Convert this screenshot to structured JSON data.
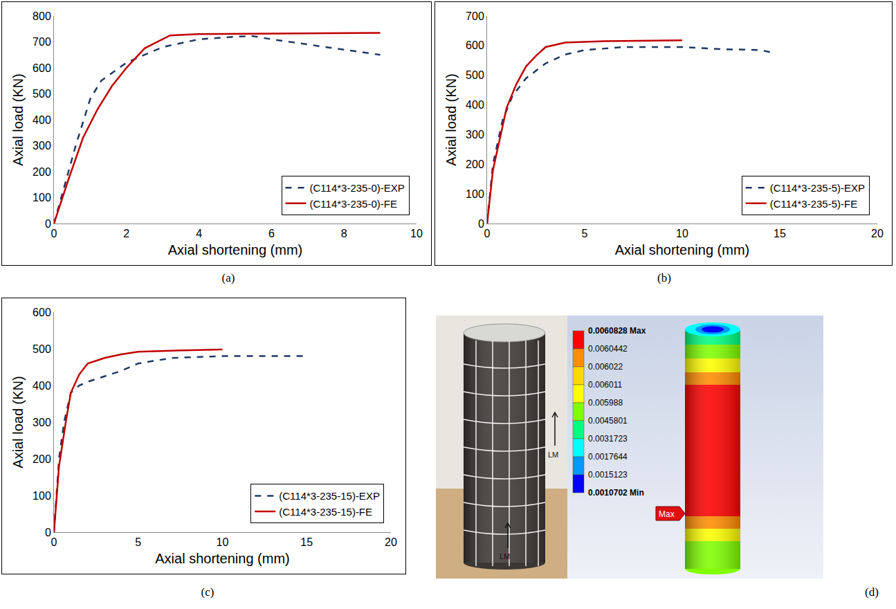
{
  "chart_data": [
    {
      "type": "line",
      "panel": "(a)",
      "x_label": "Axial shortening (mm)",
      "y_label": "Axial load (KN)",
      "xlim": [
        0,
        10
      ],
      "xticks": [
        0,
        2,
        4,
        6,
        8,
        10
      ],
      "ylim": [
        0,
        800
      ],
      "yticks": [
        0,
        100,
        200,
        300,
        400,
        500,
        600,
        700,
        800
      ],
      "grid": false,
      "legend": "bottom right",
      "series": [
        {
          "name": "(C114*3-235-0)-EXP",
          "color": "#1f3864",
          "line_style": "dash",
          "x": [
            0,
            0.3,
            0.6,
            1,
            1.3,
            2,
            3,
            4,
            5,
            5.5,
            6,
            7,
            8,
            9
          ],
          "values": [
            0,
            150,
            300,
            480,
            550,
            620,
            680,
            710,
            720,
            722,
            710,
            690,
            670,
            650
          ]
        },
        {
          "name": "(C114*3-235-0)-FE",
          "color": "#c00000",
          "line_style": "solid",
          "x": [
            0,
            0.4,
            0.8,
            1.2,
            1.6,
            2,
            2.5,
            3,
            3.2,
            4,
            6,
            8,
            9
          ],
          "values": [
            0,
            170,
            330,
            440,
            530,
            600,
            675,
            710,
            725,
            730,
            732,
            733,
            735
          ]
        }
      ]
    },
    {
      "type": "line",
      "panel": "(b)",
      "x_label": "Axial shortening (mm)",
      "y_label": "Axial load (KN)",
      "xlim": [
        0,
        20
      ],
      "xticks": [
        0,
        5,
        10,
        15,
        20
      ],
      "ylim": [
        0,
        700
      ],
      "yticks": [
        0,
        100,
        200,
        300,
        400,
        500,
        600,
        700
      ],
      "grid": false,
      "legend": "bottom right",
      "series": [
        {
          "name": "(C114*3-235-5)-EXP",
          "color": "#1f3864",
          "line_style": "dash",
          "x": [
            0,
            0.3,
            0.8,
            1.3,
            2,
            3,
            4,
            5,
            7,
            10,
            12,
            14,
            14.7
          ],
          "values": [
            0,
            200,
            350,
            430,
            490,
            540,
            570,
            585,
            595,
            595,
            588,
            585,
            575
          ]
        },
        {
          "name": "(C114*3-235-5)-FE",
          "color": "#c00000",
          "line_style": "solid",
          "x": [
            0,
            0.3,
            1,
            1.5,
            2,
            2.5,
            3,
            4,
            6,
            10
          ],
          "values": [
            0,
            180,
            390,
            470,
            530,
            565,
            595,
            610,
            615,
            618
          ]
        }
      ]
    },
    {
      "type": "line",
      "panel": "(c)",
      "x_label": "Axial shortening (mm)",
      "y_label": "Axial load (KN)",
      "xlim": [
        0,
        20
      ],
      "xticks": [
        0,
        5,
        10,
        15,
        20
      ],
      "ylim": [
        0,
        600
      ],
      "yticks": [
        0,
        100,
        200,
        300,
        400,
        500,
        600
      ],
      "grid": false,
      "legend": "bottom right",
      "series": [
        {
          "name": "(C114*3-235-15)-EXP",
          "color": "#1f3864",
          "line_style": "dash",
          "x": [
            0,
            0.3,
            0.6,
            1,
            1.5,
            2,
            3,
            4,
            5,
            7,
            10,
            15
          ],
          "values": [
            0,
            200,
            300,
            380,
            400,
            410,
            425,
            440,
            460,
            475,
            480,
            480
          ]
        },
        {
          "name": "(C114*3-235-15)-FE",
          "color": "#c00000",
          "line_style": "solid",
          "x": [
            0,
            0.3,
            0.7,
            1,
            1.5,
            2,
            3,
            4,
            5,
            7,
            10
          ],
          "values": [
            0,
            180,
            300,
            380,
            430,
            460,
            475,
            485,
            492,
            495,
            498
          ]
        }
      ]
    }
  ],
  "contour_panel": {
    "panel": "(d)",
    "legend_labels": [
      "0.0060828 Max",
      "0.0060442",
      "0.006022",
      "0.006011",
      "0.005988",
      "0.0045801",
      "0.0031723",
      "0.0017644",
      "0.0015123",
      "0.0010702 Min"
    ],
    "colors": [
      "#ff0000",
      "#ff8c00",
      "#ffd700",
      "#ffff00",
      "#7fff00",
      "#00ff7f",
      "#00ffff",
      "#0099ff",
      "#0000ff"
    ],
    "marker_label": "Max",
    "photo_labels": [
      "LM",
      "LM"
    ]
  }
}
